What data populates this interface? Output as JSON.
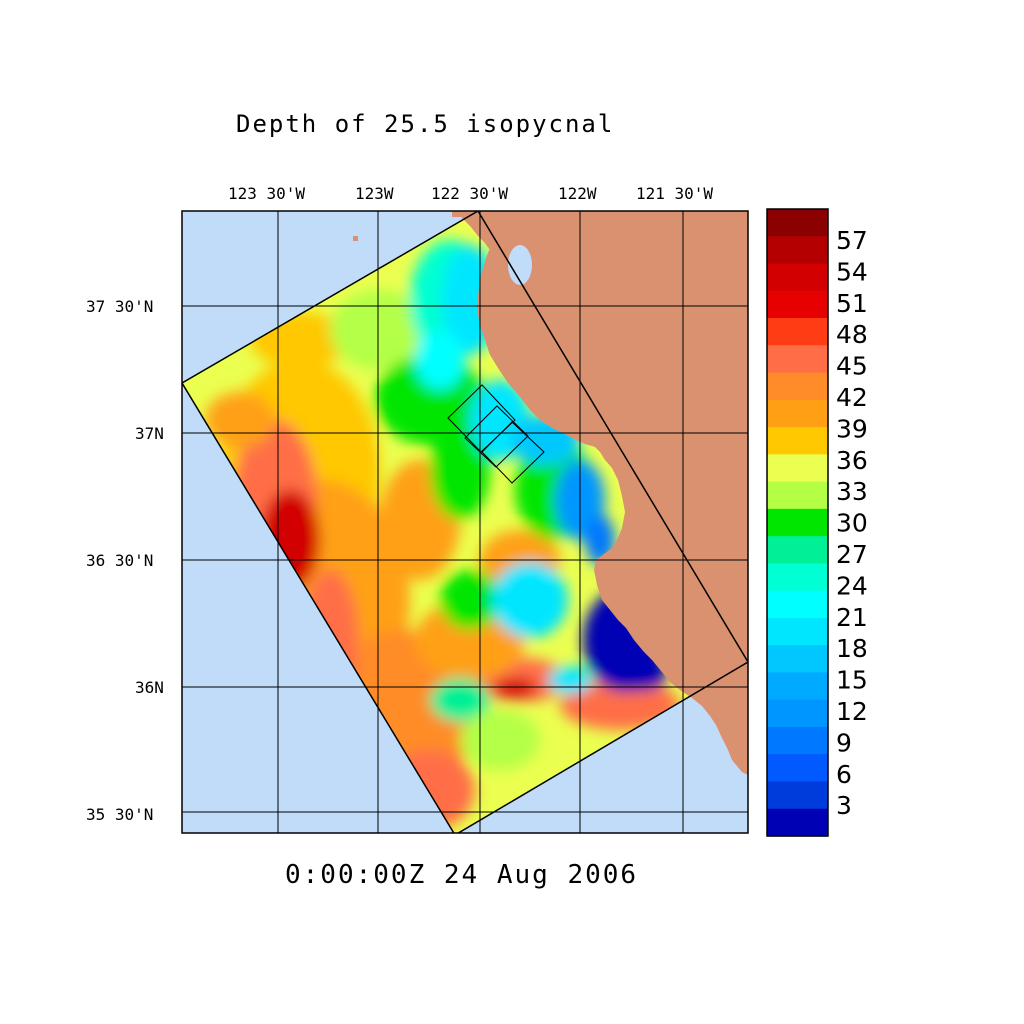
{
  "title": "Depth of 25.5 isopycnal",
  "timestamp": "0:00:00Z  24 Aug 2006",
  "longitude_ticks": [
    "123 30'W",
    "123W",
    "122 30'W",
    "122W",
    "121 30'W"
  ],
  "latitude_ticks": [
    "37 30'N",
    "37N",
    "36 30'N",
    "36N",
    "35 30'N"
  ],
  "colorbar": {
    "labels": [
      "57",
      "54",
      "51",
      "48",
      "45",
      "42",
      "39",
      "36",
      "33",
      "30",
      "27",
      "24",
      "21",
      "18",
      "15",
      "12",
      "9",
      "6",
      "3"
    ],
    "colors": [
      "#8b0000",
      "#b40000",
      "#d20000",
      "#e60000",
      "#ff3c14",
      "#ff6e46",
      "#ff8c28",
      "#ffa014",
      "#ffc800",
      "#ebff50",
      "#b4ff46",
      "#00e600",
      "#00f096",
      "#00ffd2",
      "#00ffff",
      "#00e6ff",
      "#00c8ff",
      "#00aaff",
      "#0096ff",
      "#0078ff",
      "#005aff",
      "#003cdc",
      "#0000b4"
    ]
  },
  "map": {
    "ocean_color": "#c0dcf8",
    "land_color": "#d9916f"
  }
}
